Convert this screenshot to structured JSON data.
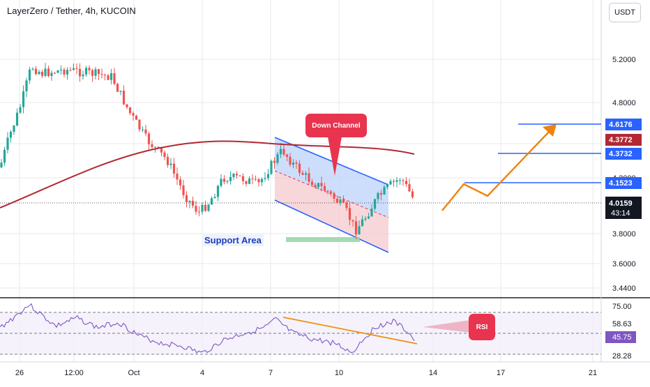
{
  "header": {
    "title": "LayerZero / Tether, 4h, KUCOIN",
    "currency": "USDT"
  },
  "price_axis": {
    "ticks": [
      "5.2000",
      "4.8000",
      "4.2000",
      "3.8000",
      "3.6000",
      "3.4400"
    ],
    "markers": [
      {
        "label": "4.6176",
        "color": "#2962ff"
      },
      {
        "label": "4.3772",
        "color": "#b22833"
      },
      {
        "label": "4.3732",
        "color": "#2962ff"
      },
      {
        "label": "4.1523",
        "color": "#2962ff"
      }
    ],
    "last_price": {
      "label": "4.0159",
      "countdown": "43:14",
      "color": "#131722"
    }
  },
  "rsi_axis": {
    "ticks": [
      "75.00",
      "58.63",
      "28.28"
    ],
    "value_label": "45.75",
    "value_color": "#7e57c2"
  },
  "time_axis": {
    "labels": [
      "26",
      "12:00",
      "Oct",
      "4",
      "7",
      "10",
      "14",
      "17",
      "21"
    ]
  },
  "annotations": {
    "down_channel": "Down Channel",
    "support_area": "Support Area",
    "rsi": "RSI"
  },
  "colors": {
    "up": "#26a69a",
    "down": "#ef5350",
    "ma": "#b22833",
    "channel": "#2962ff",
    "projection": "#f0820f",
    "rsi_line": "#7e57c2",
    "rsi_divergence": "#f0900f"
  }
}
